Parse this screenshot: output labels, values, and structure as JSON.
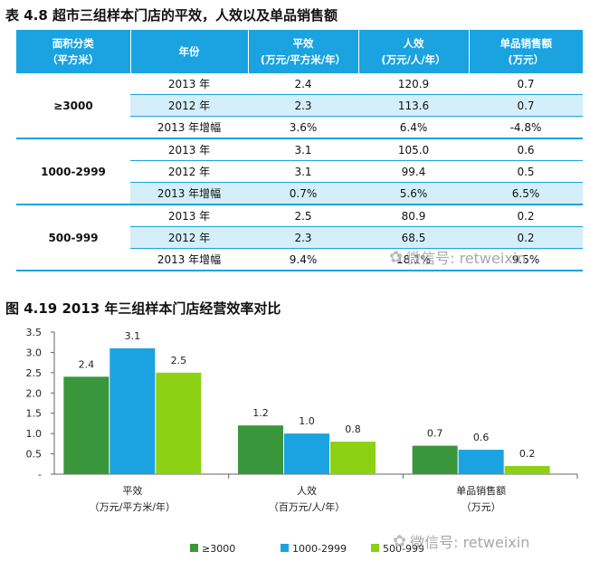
{
  "table": {
    "title": "表 4.8 超市三组样本门店的平效，人效以及单品销售额",
    "headers": [
      [
        "面积分类",
        "（平方米）"
      ],
      [
        "年份"
      ],
      [
        "平效",
        "(万元/平方米/年）"
      ],
      [
        "人效",
        "(万元/人/年）"
      ],
      [
        "单品销售额",
        "(万元）"
      ]
    ],
    "groups": [
      {
        "name": "≥3000",
        "rows": [
          {
            "year": "2013 年",
            "pingxiao": "2.4",
            "renxiao": "120.9",
            "danpin": "0.7"
          },
          {
            "year": "2012 年",
            "pingxiao": "2.3",
            "renxiao": "113.6",
            "danpin": "0.7"
          },
          {
            "year": "2013 年增幅",
            "pingxiao": "3.6%",
            "renxiao": "6.4%",
            "danpin": "-4.8%"
          }
        ]
      },
      {
        "name": "1000-2999",
        "rows": [
          {
            "year": "2013 年",
            "pingxiao": "3.1",
            "renxiao": "105.0",
            "danpin": "0.6"
          },
          {
            "year": "2012 年",
            "pingxiao": "3.1",
            "renxiao": "99.4",
            "danpin": "0.5"
          },
          {
            "year": "2013 年增幅",
            "pingxiao": "0.7%",
            "renxiao": "5.6%",
            "danpin": "6.5%"
          }
        ]
      },
      {
        "name": "500-999",
        "rows": [
          {
            "year": "2013 年",
            "pingxiao": "2.5",
            "renxiao": "80.9",
            "danpin": "0.2"
          },
          {
            "year": "2012 年",
            "pingxiao": "2.3",
            "renxiao": "68.5",
            "danpin": "0.2"
          },
          {
            "year": "2013 年增幅",
            "pingxiao": "9.4%",
            "renxiao": "18.1%",
            "danpin": "9.5%"
          }
        ]
      }
    ]
  },
  "watermark_text": "微信号: retweixin",
  "watermark_icon": "wechat-icon",
  "colors": {
    "header_bg": "#1aa3e0",
    "row_light": "#d5effa",
    "series_1": "#3a963a",
    "series_2": "#1aa3e0",
    "series_3": "#8cd113"
  },
  "chart_data": {
    "type": "bar",
    "title": "图 4.19 2013 年三组样本门店经营效率对比",
    "categories": [
      [
        "平效",
        "（万元/平方米/年）"
      ],
      [
        "人效",
        "（百万元/人/年）"
      ],
      [
        "单品销售额",
        "（万元）"
      ]
    ],
    "series": [
      {
        "name": "≥3000",
        "values": [
          2.4,
          1.2,
          0.7
        ],
        "labels": [
          "2.4",
          "1.2",
          "0.7"
        ]
      },
      {
        "name": "1000-2999",
        "values": [
          3.1,
          1.0,
          0.6
        ],
        "labels": [
          "3.1",
          "1.0",
          "0.6"
        ]
      },
      {
        "name": "500-999",
        "values": [
          2.5,
          0.8,
          0.2
        ],
        "labels": [
          "2.5",
          "0.8",
          "0.2"
        ]
      }
    ],
    "y_ticks": [
      "-",
      "0.5",
      "1.0",
      "1.5",
      "2.0",
      "2.5",
      "3.0",
      "3.5"
    ],
    "y_tick_values": [
      0,
      0.5,
      1.0,
      1.5,
      2.0,
      2.5,
      3.0,
      3.5
    ],
    "ylim": [
      0,
      3.5
    ],
    "grid": false,
    "legend_position": "bottom"
  }
}
